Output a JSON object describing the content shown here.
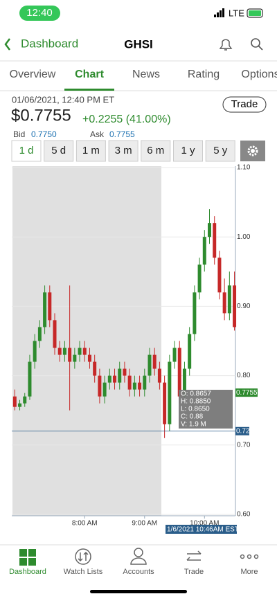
{
  "status_bar": {
    "time": "12:40",
    "network": "LTE"
  },
  "nav": {
    "back": "Dashboard",
    "title": "GHSI"
  },
  "tabs": [
    "Overview",
    "Chart",
    "News",
    "Rating",
    "Options"
  ],
  "quote": {
    "timestamp": "01/06/2021, 12:40 PM ET",
    "price": "$0.7755",
    "change": "+0.2255 (41.00%)",
    "trade": "Trade",
    "bid_label": "Bid",
    "bid": "0.7750",
    "ask_label": "Ask",
    "ask": "0.7755"
  },
  "ranges": [
    "1 d",
    "5 d",
    "1 m",
    "3 m",
    "6 m",
    "1 y",
    "5 y"
  ],
  "chart": {
    "type": "candlestick",
    "up_color": "#2e8b2e",
    "down_color": "#c62828",
    "x": [
      410,
      415,
      420,
      425,
      430,
      435,
      440,
      445,
      450,
      455,
      460,
      465,
      470,
      475,
      480,
      485,
      490,
      495,
      500,
      505,
      510,
      515,
      520,
      525,
      530,
      535,
      540,
      545,
      550,
      555,
      560,
      565,
      570,
      575,
      580,
      585,
      590,
      595,
      600,
      605,
      610,
      615,
      620,
      625,
      630
    ],
    "open": [
      0.77,
      0.755,
      0.76,
      0.77,
      0.82,
      0.85,
      0.87,
      0.92,
      0.88,
      0.84,
      0.83,
      0.84,
      0.82,
      0.83,
      0.84,
      0.83,
      0.82,
      0.8,
      0.77,
      0.79,
      0.8,
      0.79,
      0.81,
      0.8,
      0.78,
      0.79,
      0.78,
      0.8,
      0.83,
      0.81,
      0.79,
      0.73,
      0.82,
      0.84,
      0.77,
      0.81,
      0.86,
      0.92,
      0.96,
      1.0,
      1.02,
      0.97,
      0.92,
      0.89,
      0.93
    ],
    "high": [
      0.78,
      0.765,
      0.775,
      0.83,
      0.86,
      0.88,
      0.93,
      0.93,
      0.89,
      0.85,
      0.85,
      0.93,
      0.84,
      0.85,
      0.85,
      0.84,
      0.83,
      0.81,
      0.8,
      0.81,
      0.81,
      0.82,
      0.82,
      0.81,
      0.8,
      0.8,
      0.81,
      0.84,
      0.84,
      0.82,
      0.8,
      0.83,
      0.85,
      0.85,
      0.82,
      0.87,
      0.93,
      0.97,
      1.01,
      1.04,
      1.03,
      0.98,
      0.94,
      0.95,
      0.95
    ],
    "low": [
      0.75,
      0.75,
      0.755,
      0.765,
      0.81,
      0.84,
      0.86,
      0.87,
      0.83,
      0.82,
      0.82,
      0.75,
      0.81,
      0.82,
      0.82,
      0.81,
      0.79,
      0.76,
      0.76,
      0.78,
      0.78,
      0.78,
      0.79,
      0.77,
      0.77,
      0.77,
      0.77,
      0.79,
      0.8,
      0.78,
      0.71,
      0.72,
      0.81,
      0.76,
      0.76,
      0.8,
      0.85,
      0.91,
      0.95,
      0.99,
      0.96,
      0.91,
      0.88,
      0.88,
      0.865
    ],
    "close": [
      0.755,
      0.76,
      0.77,
      0.82,
      0.85,
      0.87,
      0.92,
      0.88,
      0.84,
      0.83,
      0.84,
      0.82,
      0.83,
      0.84,
      0.83,
      0.82,
      0.8,
      0.77,
      0.79,
      0.8,
      0.79,
      0.81,
      0.8,
      0.78,
      0.79,
      0.78,
      0.8,
      0.83,
      0.81,
      0.79,
      0.73,
      0.82,
      0.84,
      0.77,
      0.81,
      0.86,
      0.92,
      0.96,
      1.0,
      1.02,
      0.97,
      0.92,
      0.89,
      0.93,
      0.87
    ],
    "xlim": [
      407,
      631
    ],
    "xticks": [
      {
        "value": 480,
        "label": "8:00 AM"
      },
      {
        "value": 540,
        "label": "9:00 AM"
      },
      {
        "value": 600,
        "label": "10:00 AM"
      }
    ],
    "ylim": [
      0.6,
      1.1
    ],
    "yticks": [
      {
        "value": 0.6,
        "label": "0.60"
      },
      {
        "value": 0.7,
        "label": "0.70"
      },
      {
        "value": 0.8,
        "label": "0.80"
      },
      {
        "value": 0.9,
        "label": "0.90"
      },
      {
        "value": 1.0,
        "label": "1.00"
      },
      {
        "value": 1.1,
        "label": "1.10"
      }
    ],
    "last_price": 0.7755,
    "crosshair_price": 0.72,
    "crosshair_label": "1/6/2021 10:46AM EST",
    "tooltip": [
      "O: 0.8657",
      "H: 0.8850",
      "L: 0.8650",
      "C: 0.88",
      "V: 1.9 M"
    ]
  },
  "bottom_nav": [
    "Dashboard",
    "Watch Lists",
    "Accounts",
    "Trade",
    "More"
  ]
}
